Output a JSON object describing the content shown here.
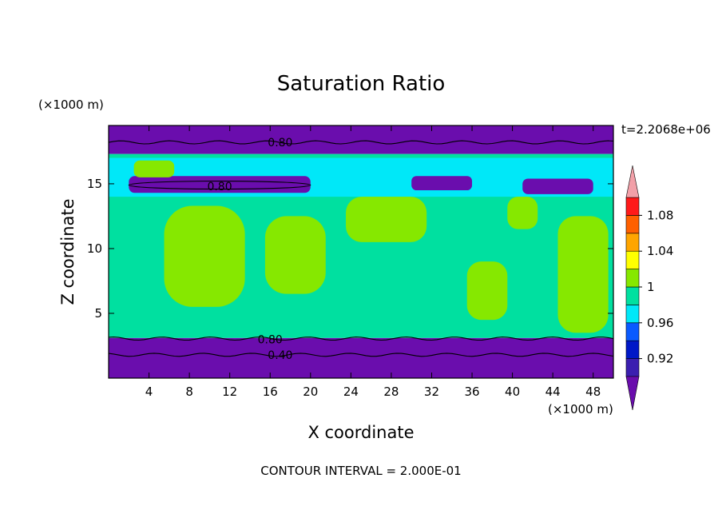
{
  "chart_data": {
    "type": "heatmap",
    "title": "Saturation Ratio",
    "xlabel": "X coordinate",
    "ylabel": "Z coordinate",
    "x_unit_label": "(×1000 m)",
    "y_unit_label": "(×1000 m)",
    "time_label": "t=2.2068e+06",
    "footer": "CONTOUR INTERVAL = 2.000E-01",
    "xlim": [
      0,
      50
    ],
    "ylim": [
      0,
      19.5
    ],
    "x_ticks": [
      4,
      8,
      12,
      16,
      20,
      24,
      28,
      32,
      36,
      40,
      44,
      48
    ],
    "y_ticks": [
      5,
      10,
      15
    ],
    "contour_labels": [
      {
        "text": "0.80",
        "x": 17,
        "y": 18.2
      },
      {
        "text": "0.80",
        "x": 11,
        "y": 14.8
      },
      {
        "text": "0.80",
        "x": 16,
        "y": 3.0
      },
      {
        "text": "0.40",
        "x": 17,
        "y": 1.8
      }
    ],
    "colorbar": {
      "levels": [
        0.9,
        0.92,
        0.94,
        0.96,
        0.98,
        1.0,
        1.02,
        1.04,
        1.06,
        1.08,
        1.1
      ],
      "tick_labels": [
        "0.92",
        "0.96",
        "1",
        "1.04",
        "1.08"
      ],
      "colors": [
        "#6a0dad",
        "#3b1fb0",
        "#0018c8",
        "#0a5aff",
        "#00e8f8",
        "#00e0a0",
        "#86e800",
        "#ffff00",
        "#ffa500",
        "#ff6000",
        "#ff1a1a",
        "#f2a0a8"
      ],
      "extend": "both"
    },
    "field_regions": [
      {
        "level": "<0.9",
        "x": [
          0,
          50
        ],
        "z": [
          0,
          3.1
        ]
      },
      {
        "level": "<0.9",
        "x": [
          0,
          50
        ],
        "z": [
          17.3,
          19.5
        ]
      },
      {
        "level": "0.98-1.0",
        "x": [
          0,
          50
        ],
        "z": [
          3.1,
          17.3
        ]
      },
      {
        "level": "0.96-0.98",
        "x": [
          0,
          50
        ],
        "z": [
          14.0,
          17.0
        ]
      },
      {
        "level": "<0.9",
        "x": [
          2,
          20
        ],
        "z": [
          14.3,
          15.6
        ]
      },
      {
        "level": "<0.9",
        "x": [
          30,
          36
        ],
        "z": [
          14.5,
          15.6
        ]
      },
      {
        "level": "<0.9",
        "x": [
          41,
          48
        ],
        "z": [
          14.2,
          15.4
        ]
      },
      {
        "level": "1.0-1.02",
        "x": [
          5.5,
          13.5
        ],
        "z": [
          5.5,
          13.3
        ]
      },
      {
        "level": "1.0-1.02",
        "x": [
          15.5,
          21.5
        ],
        "z": [
          6.5,
          12.5
        ]
      },
      {
        "level": "1.0-1.02",
        "x": [
          23.5,
          31.5
        ],
        "z": [
          10.5,
          14.0
        ]
      },
      {
        "level": "1.0-1.02",
        "x": [
          35.5,
          39.5
        ],
        "z": [
          4.5,
          9.0
        ]
      },
      {
        "level": "1.0-1.02",
        "x": [
          39.5,
          42.5
        ],
        "z": [
          11.5,
          14.0
        ]
      },
      {
        "level": "1.0-1.02",
        "x": [
          44.5,
          49.5
        ],
        "z": [
          3.5,
          12.5
        ]
      },
      {
        "level": "1.0-1.02",
        "x": [
          2.5,
          6.5
        ],
        "z": [
          15.5,
          16.8
        ]
      }
    ]
  }
}
